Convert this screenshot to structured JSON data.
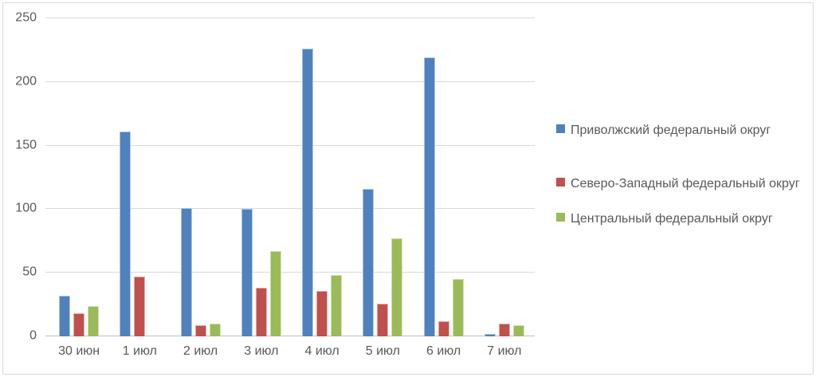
{
  "chart_data": {
    "type": "bar",
    "title": "",
    "xlabel": "",
    "ylabel": "",
    "categories": [
      "30 июн",
      "1 июл",
      "2 июл",
      "3 июл",
      "4 июл",
      "5 июл",
      "6 июл",
      "7 июл"
    ],
    "series": [
      {
        "name": "Приволжский федеральный округ",
        "color": "#4F81BD",
        "values": [
          32,
          161,
          101,
          100,
          226,
          116,
          219,
          2
        ]
      },
      {
        "name": "Северо-Западный федеральный округ",
        "color": "#C0504D",
        "values": [
          18,
          47,
          9,
          38,
          36,
          26,
          12,
          10
        ]
      },
      {
        "name": "Центральный федеральный округ",
        "color": "#9BBB59",
        "values": [
          24,
          0,
          10,
          67,
          48,
          77,
          45,
          9
        ]
      }
    ],
    "ylim": [
      0,
      250
    ],
    "yticks": [
      0,
      50,
      100,
      150,
      200,
      250
    ],
    "grid": true,
    "legend_position": "right"
  },
  "colors": {
    "gridline": "#D9D9D9",
    "axis_line": "#BFBFBF",
    "text": "#595959",
    "frame_border": "#D9D9D9",
    "background": "#FFFFFF"
  }
}
